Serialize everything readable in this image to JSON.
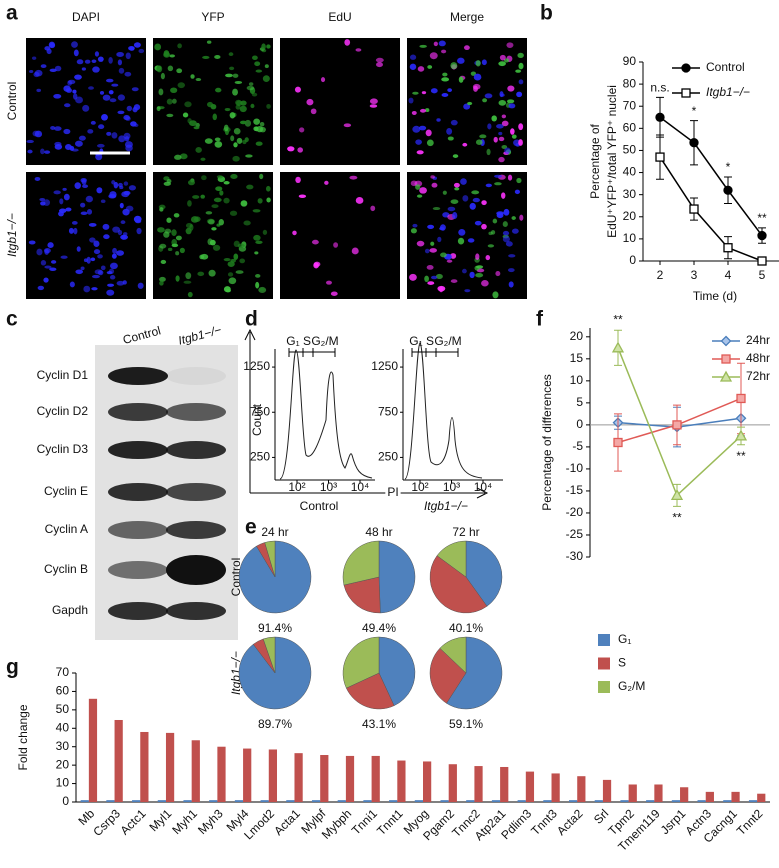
{
  "panels": {
    "a": {
      "label": "a",
      "columns": [
        "DAPI",
        "YFP",
        "EdU",
        "Merge"
      ],
      "rows": [
        "Control",
        "Itgb1−/−"
      ]
    },
    "c": {
      "label": "c",
      "columns": [
        "Control",
        "Itgb1−/−"
      ],
      "rows": [
        "Cyclin D1",
        "Cyclin D2",
        "Cyclin D3",
        "Cyclin E",
        "Cyclin A",
        "Cyclin B",
        "Gapdh"
      ]
    },
    "d": {
      "label": "d",
      "gates": [
        "G₁",
        "S",
        "G₂/M"
      ],
      "ylabel": "Count",
      "xlabel": "PI",
      "samples": [
        "Control",
        "Itgb1−/−"
      ],
      "ylim": [
        0,
        1450
      ],
      "yticks": [
        1250,
        750,
        250
      ],
      "log_x": true,
      "xticks": [
        {
          "value": 100,
          "label": "10²"
        },
        {
          "value": 1000,
          "label": "10³"
        },
        {
          "value": 10000,
          "label": "10⁴"
        }
      ]
    }
  },
  "chart_data": [
    {
      "panel": "b",
      "type": "line",
      "xlabel": "Time (d)",
      "ylabel": [
        "Percentage of",
        "EdU⁺YFP⁺/total YFP⁺ nuclei"
      ],
      "categories": [
        "2",
        "3",
        "4",
        "5"
      ],
      "series": [
        {
          "name": "Control",
          "color": "#000000",
          "marker": "filled-circle",
          "values": [
            65,
            53.5,
            32,
            11.5
          ],
          "errors": [
            9,
            10,
            6,
            3.5
          ]
        },
        {
          "name": "Itgb1−/−",
          "color": "#000000",
          "marker": "open-square",
          "values": [
            47,
            23.5,
            6,
            0
          ],
          "errors": [
            10,
            5,
            5,
            1
          ]
        }
      ],
      "annotations": [
        "n.s.",
        "*",
        "*",
        "**"
      ],
      "ylim": [
        0,
        90
      ],
      "yticks": [
        0,
        10,
        20,
        30,
        40,
        50,
        60,
        70,
        80,
        90
      ]
    },
    {
      "panel": "e",
      "type": "pie",
      "categories": [
        "G₁",
        "S",
        "G₂/M"
      ],
      "colors": [
        "#4f81bd",
        "#c0504d",
        "#9bbb59"
      ],
      "columns": [
        "24 hr",
        "48 hr",
        "72 hr"
      ],
      "rows": [
        "Control",
        "Itgb1−/−"
      ],
      "pies": [
        [
          {
            "values": [
              91.4,
              4,
              4.6
            ],
            "label": "91.4%"
          },
          {
            "values": [
              49.4,
              22,
              28.6
            ],
            "label": "49.4%"
          },
          {
            "values": [
              40.1,
              45,
              14.9
            ],
            "label": "40.1%"
          }
        ],
        [
          {
            "values": [
              89.7,
              5,
              5.3
            ],
            "label": "89.7%"
          },
          {
            "values": [
              43.1,
              25,
              31.9
            ],
            "label": "43.1%"
          },
          {
            "values": [
              59.1,
              28,
              12.9
            ],
            "label": "59.1%"
          }
        ]
      ]
    },
    {
      "panel": "f",
      "type": "line",
      "ylabel": "Percentage of differences",
      "categories": [
        null,
        null,
        null
      ],
      "series": [
        {
          "name": "24hr",
          "color": "#4a7ebb",
          "marker": "diamond",
          "values": [
            0.5,
            -0.5,
            1.5
          ],
          "errors": [
            1.5,
            4.5,
            4
          ]
        },
        {
          "name": "48hr",
          "color": "#e05a56",
          "marker": "square",
          "values": [
            -4,
            0,
            6
          ],
          "errors": [
            6.5,
            4.5,
            8
          ]
        },
        {
          "name": "72hr",
          "color": "#9bbb59",
          "marker": "triangle",
          "values": [
            17.5,
            -16,
            -2.5
          ],
          "errors": [
            4,
            2.5,
            2
          ]
        }
      ],
      "annotations": [
        "**",
        "**",
        "**"
      ],
      "ylim": [
        -30,
        22
      ],
      "yticks": [
        -30,
        -25,
        -20,
        -15,
        -10,
        -5,
        0,
        5,
        10,
        15,
        20
      ]
    },
    {
      "panel": "g",
      "type": "bar",
      "ylabel": "Fold change",
      "categories": [
        "Mb",
        "Csrp3",
        "Actc1",
        "Myl1",
        "Myh1",
        "Myh3",
        "Myl4",
        "Lmod2",
        "Acta1",
        "Mylpf",
        "Mybph",
        "Tnni1",
        "Tnnt1",
        "Myog",
        "Pgam2",
        "Tnnc2",
        "Atp2a1",
        "Pdlim3",
        "Tnnt3",
        "Acta2",
        "Srl",
        "Tpm2",
        "Tmem119",
        "Jsrp1",
        "Actn3",
        "Cacng1",
        "Tnnt2"
      ],
      "series": [
        {
          "color": "#4f81bd",
          "values": [
            1,
            1,
            1,
            1,
            1,
            1,
            1,
            1,
            1,
            1,
            1,
            1,
            1,
            1,
            1,
            1,
            1,
            1,
            1,
            1,
            1,
            1,
            1,
            1,
            1,
            1,
            1
          ]
        },
        {
          "color": "#c0504d",
          "values": [
            56,
            44.5,
            38,
            37.5,
            33.5,
            30,
            29,
            28.5,
            26.5,
            25.5,
            25,
            25,
            22.5,
            22,
            20.5,
            19.5,
            19,
            16.5,
            15.5,
            14,
            12,
            9.5,
            9.5,
            8,
            5.5,
            5.5,
            4.5
          ]
        }
      ],
      "ylim": [
        0,
        70
      ],
      "yticks": [
        0,
        10,
        20,
        30,
        40,
        50,
        60,
        70
      ]
    }
  ]
}
